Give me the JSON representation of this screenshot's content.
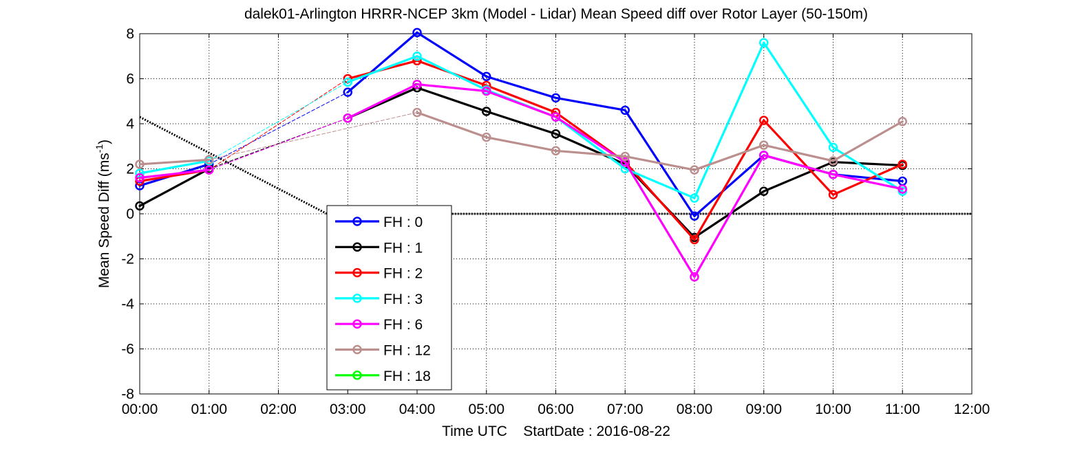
{
  "chart_data": {
    "type": "line",
    "title": "dalek01-Arlington HRRR-NCEP 3km (Model - Lidar) Mean Speed diff over Rotor Layer (50-150m)",
    "xlabel": "Time UTC    StartDate : 2016-08-22",
    "ylabel": "Mean Speed Diff (ms",
    "ylabel_sup": "-1",
    "ylabel_tail": ")",
    "x_tick_labels": [
      "00:00",
      "01:00",
      "02:00",
      "03:00",
      "04:00",
      "05:00",
      "06:00",
      "07:00",
      "08:00",
      "09:00",
      "10:00",
      "11:00",
      "12:00"
    ],
    "y_tick_labels": [
      "-8",
      "-6",
      "-4",
      "-2",
      "0",
      "2",
      "4",
      "6",
      "8"
    ],
    "xlim": [
      0,
      12
    ],
    "ylim": [
      -8,
      8
    ],
    "grid": true,
    "legend_position": "lower-left inside",
    "series": [
      {
        "name": "FH : 0",
        "color": "#0000ff",
        "points": [
          [
            0,
            1.25
          ],
          [
            1,
            2.2
          ],
          [
            3,
            5.4
          ],
          [
            4,
            8.05
          ],
          [
            5,
            6.1
          ],
          [
            6,
            5.15
          ],
          [
            7,
            4.6
          ],
          [
            8,
            -0.1
          ],
          [
            9,
            2.6
          ],
          [
            10,
            1.75
          ],
          [
            11,
            1.45
          ]
        ]
      },
      {
        "name": "FH : 1",
        "color": "#000000",
        "points": [
          [
            0,
            0.35
          ],
          [
            1,
            2.0
          ],
          [
            3,
            4.25
          ],
          [
            4,
            5.6
          ],
          [
            5,
            4.55
          ],
          [
            6,
            3.55
          ],
          [
            7,
            2.2
          ],
          [
            8,
            -1.05
          ],
          [
            9,
            1.0
          ],
          [
            10,
            2.3
          ],
          [
            11,
            2.15
          ]
        ]
      },
      {
        "name": "FH : 2",
        "color": "#ff0000",
        "points": [
          [
            0,
            1.45
          ],
          [
            1,
            1.95
          ],
          [
            3,
            6.0
          ],
          [
            4,
            6.8
          ],
          [
            5,
            5.7
          ],
          [
            6,
            4.5
          ],
          [
            7,
            2.3
          ],
          [
            8,
            -1.15
          ],
          [
            9,
            4.15
          ],
          [
            10,
            0.85
          ],
          [
            11,
            2.2
          ]
        ]
      },
      {
        "name": "FH : 3",
        "color": "#00ffff",
        "points": [
          [
            0,
            1.8
          ],
          [
            1,
            2.35
          ],
          [
            3,
            5.85
          ],
          [
            4,
            7.0
          ],
          [
            5,
            5.5
          ],
          [
            6,
            4.3
          ],
          [
            7,
            2.0
          ],
          [
            8,
            0.7
          ],
          [
            9,
            7.6
          ],
          [
            10,
            2.95
          ],
          [
            11,
            1.0
          ]
        ]
      },
      {
        "name": "FH : 6",
        "color": "#ff00ff",
        "points": [
          [
            0,
            1.6
          ],
          [
            1,
            1.95
          ],
          [
            3,
            4.25
          ],
          [
            4,
            5.75
          ],
          [
            5,
            5.45
          ],
          [
            6,
            4.3
          ],
          [
            7,
            2.3
          ],
          [
            8,
            -2.8
          ],
          [
            9,
            2.6
          ],
          [
            10,
            1.75
          ],
          [
            11,
            1.1
          ]
        ]
      },
      {
        "name": "FH : 12",
        "color": "#bc8f8f",
        "points": [
          [
            0,
            2.2
          ],
          [
            1,
            2.4
          ],
          [
            3,
            null
          ],
          [
            4,
            4.5
          ],
          [
            5,
            3.4
          ],
          [
            6,
            2.8
          ],
          [
            7,
            2.55
          ],
          [
            8,
            1.95
          ],
          [
            9,
            3.05
          ],
          [
            10,
            2.35
          ],
          [
            11,
            4.1
          ]
        ]
      },
      {
        "name": "FH : 18",
        "color": "#00ff00",
        "points": []
      }
    ],
    "reference_line": {
      "color": "#000000",
      "style": "dotted",
      "points": [
        [
          0,
          4.3
        ],
        [
          2.7,
          0
        ],
        [
          12,
          0
        ]
      ]
    }
  }
}
